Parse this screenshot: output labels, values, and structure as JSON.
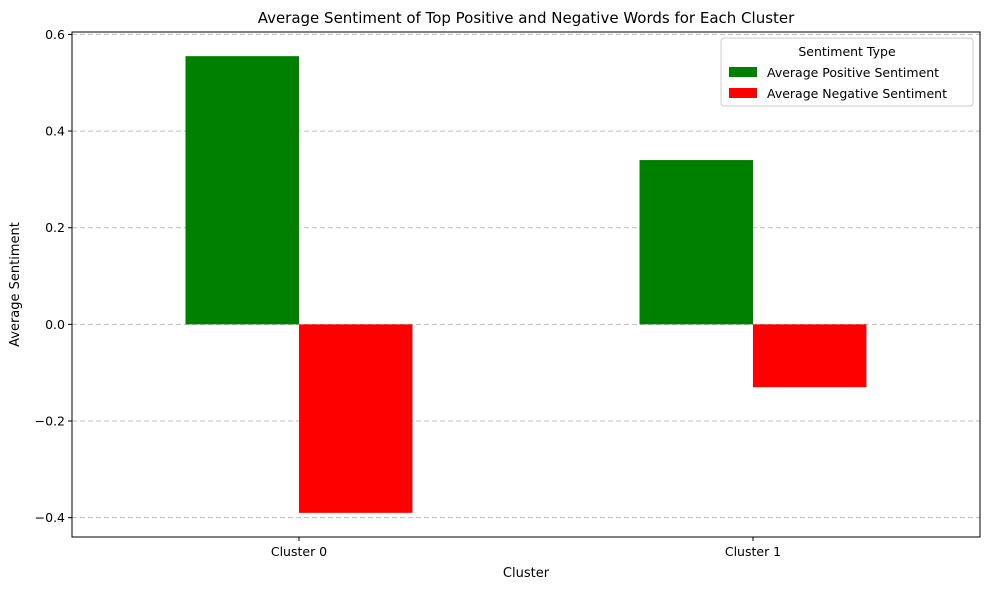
{
  "chart_data": {
    "type": "bar",
    "title": "Average Sentiment of Top Positive and Negative Words for Each Cluster",
    "xlabel": "Cluster",
    "ylabel": "Average Sentiment",
    "categories": [
      "Cluster 0",
      "Cluster 1"
    ],
    "series": [
      {
        "name": "Average Positive Sentiment",
        "values": [
          0.555,
          0.34
        ],
        "color": "#008000"
      },
      {
        "name": "Average Negative Sentiment",
        "values": [
          -0.39,
          -0.13
        ],
        "color": "#ff0000"
      }
    ],
    "ylim": [
      -0.44,
      0.605
    ],
    "yticks": [
      -0.4,
      -0.2,
      0.0,
      0.2,
      0.4,
      0.6
    ],
    "ytick_labels": [
      "−0.4",
      "−0.2",
      "0.0",
      "0.2",
      "0.4",
      "0.6"
    ],
    "grid": {
      "axis": "y",
      "style": "dashed"
    },
    "legend": {
      "title": "Sentiment Type",
      "placement": "top-right"
    }
  }
}
